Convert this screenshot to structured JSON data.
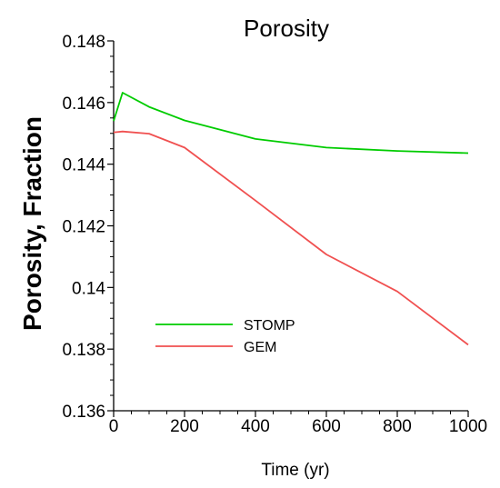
{
  "chart_data": {
    "type": "line",
    "title": "Porosity",
    "xlabel": "Time (yr)",
    "ylabel": "Porosity, Fraction",
    "xlim": [
      0,
      1000
    ],
    "ylim": [
      0.136,
      0.148
    ],
    "x_ticks": [
      0,
      200,
      400,
      600,
      800,
      1000
    ],
    "x_tick_labels": [
      "0",
      "200",
      "400",
      "600",
      "800",
      "1000"
    ],
    "y_ticks": [
      0.136,
      0.138,
      0.14,
      0.142,
      0.144,
      0.146,
      0.148
    ],
    "y_tick_labels": [
      "0.136",
      "0.138",
      "0.14",
      "0.142",
      "0.144",
      "0.146",
      "0.148"
    ],
    "grid": false,
    "legend_position": "lower-left",
    "series": [
      {
        "name": "STOMP",
        "color": "#00cc00",
        "x": [
          0,
          25,
          100,
          200,
          400,
          600,
          800,
          1000
        ],
        "y": [
          0.1454,
          0.14632,
          0.14586,
          0.14542,
          0.14482,
          0.14454,
          0.14443,
          0.14436
        ]
      },
      {
        "name": "GEM",
        "color": "#f05050",
        "x": [
          0,
          25,
          100,
          200,
          400,
          600,
          800,
          1000
        ],
        "y": [
          0.14503,
          0.14506,
          0.14499,
          0.14454,
          0.14282,
          0.14107,
          0.13987,
          0.13814
        ]
      }
    ]
  }
}
